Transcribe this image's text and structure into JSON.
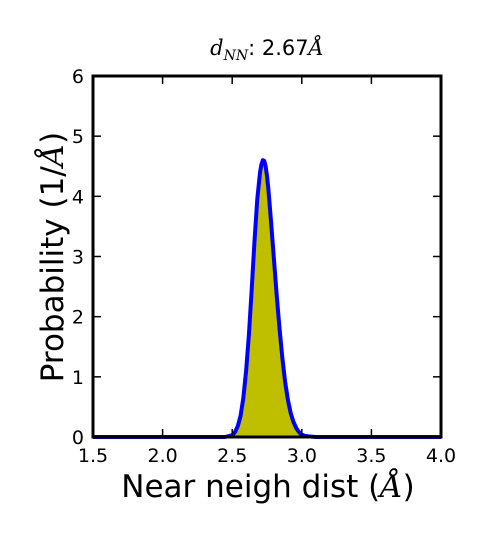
{
  "chart_data": {
    "type": "area",
    "title": {
      "symbol": "d",
      "subscript": "NN",
      "value_text": ": 2.67",
      "unit": "Å"
    },
    "xlabel": {
      "text": "Near neigh dist (",
      "unit": "Å",
      "close": ")"
    },
    "ylabel": {
      "text": "Probability (1/",
      "unit": "Å",
      "close": ")"
    },
    "xlim": [
      1.5,
      4.0
    ],
    "ylim": [
      0,
      6
    ],
    "xticks": [
      "1.5",
      "2.0",
      "2.5",
      "3.0",
      "3.5",
      "4.0"
    ],
    "yticks": [
      "0",
      "1",
      "2",
      "3",
      "4",
      "5",
      "6"
    ],
    "grid": false,
    "series": [
      {
        "x": [
          1.5,
          2.45,
          2.5,
          2.52,
          2.54,
          2.56,
          2.58,
          2.6,
          2.62,
          2.64,
          2.66,
          2.68,
          2.7,
          2.71,
          2.72,
          2.73,
          2.74,
          2.75,
          2.76,
          2.78,
          2.8,
          2.82,
          2.84,
          2.86,
          2.88,
          2.9,
          2.92,
          2.94,
          2.96,
          2.98,
          3.0,
          3.02,
          3.05,
          3.1,
          4.0
        ],
        "y": [
          0,
          0,
          0.03,
          0.08,
          0.18,
          0.35,
          0.65,
          1.1,
          1.7,
          2.45,
          3.25,
          3.95,
          4.4,
          4.53,
          4.6,
          4.59,
          4.5,
          4.34,
          4.12,
          3.55,
          2.95,
          2.35,
          1.8,
          1.32,
          0.92,
          0.62,
          0.4,
          0.25,
          0.15,
          0.08,
          0.04,
          0.02,
          0.01,
          0,
          0
        ]
      }
    ],
    "colors": {
      "line": "#0000ff",
      "fill": "#bfbf00",
      "axes": "#000000"
    }
  }
}
